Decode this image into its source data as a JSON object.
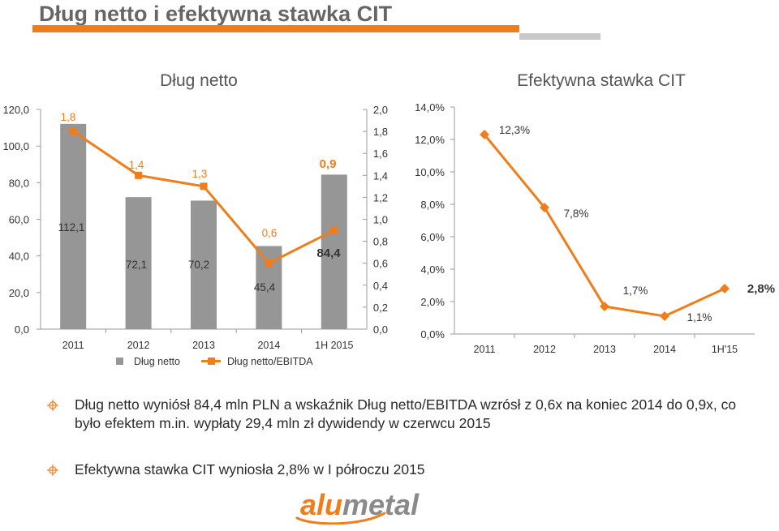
{
  "slide": {
    "title": "Dług netto i efektywna stawka CIT",
    "accent_color": "#f07d1a",
    "title_color": "#666666"
  },
  "chart_data": [
    {
      "type": "bar",
      "title": "Dług netto",
      "categories": [
        "2011",
        "2012",
        "2013",
        "2014",
        "1H 2015"
      ],
      "y_left": {
        "min": 0,
        "max": 120,
        "step": 20,
        "tick_labels": [
          "0,0",
          "20,0",
          "40,0",
          "60,0",
          "80,0",
          "100,0",
          "120,0"
        ]
      },
      "y_right": {
        "min": 0,
        "max": 2.0,
        "step": 0.2,
        "tick_labels": [
          "0,0",
          "0,2",
          "0,4",
          "0,6",
          "0,8",
          "1,0",
          "1,2",
          "1,4",
          "1,6",
          "1,8",
          "2,0"
        ]
      },
      "series": [
        {
          "name": "Dług netto",
          "kind": "bar",
          "axis": "left",
          "color": "#969696",
          "values": [
            112.1,
            72.1,
            70.2,
            45.4,
            84.4
          ],
          "labels": [
            "112,1",
            "72,1",
            "70,2",
            "45,4",
            "84,4"
          ]
        },
        {
          "name": "Dług netto/EBITDA",
          "kind": "line",
          "axis": "right",
          "color": "#f07d1a",
          "values": [
            1.8,
            1.4,
            1.3,
            0.6,
            0.9
          ],
          "labels": [
            "1,8",
            "1,4",
            "1,3",
            "0,6",
            "0,9"
          ]
        }
      ],
      "legend_position": "bottom",
      "grid": false
    },
    {
      "type": "line",
      "title": "Efektywna stawka CIT",
      "categories": [
        "2011",
        "2012",
        "2013",
        "2014",
        "1H'15"
      ],
      "y": {
        "min": 0,
        "max": 14,
        "step": 2,
        "tick_labels": [
          "0,0%",
          "2,0%",
          "4,0%",
          "6,0%",
          "8,0%",
          "10,0%",
          "12,0%",
          "14,0%"
        ]
      },
      "series": [
        {
          "kind": "line",
          "color": "#f07d1a",
          "values": [
            12.3,
            7.8,
            1.7,
            1.1,
            2.8
          ],
          "labels": [
            "12,3%",
            "7,8%",
            "1,7%",
            "1,1%",
            "2,8%"
          ]
        }
      ],
      "grid": false
    }
  ],
  "bullets": [
    {
      "text": "Dług netto wyniósł 84,4 mln PLN a wskaźnik Dług netto/EBITDA wzrósł z 0,6x na koniec 2014 do 0,9x, co było efektem m.in. wypłaty 29,4 mln zł dywidendy w czerwcu 2015"
    },
    {
      "text": "Efektywna stawka CIT wyniosła 2,8% w I półroczu 2015"
    }
  ],
  "logo": {
    "part1": "alu",
    "part2": "metal",
    "part1_color": "#f07d1a",
    "part2_color": "#8a8a8a"
  },
  "bullet_icon": "crosshair-bullet-icon"
}
